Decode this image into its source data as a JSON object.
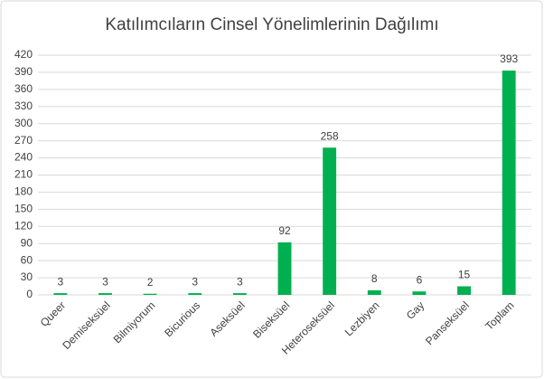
{
  "chart_data": {
    "type": "bar",
    "title": "Katılımcıların Cinsel Yönelimlerinin Dağılımı",
    "categories": [
      "Queer",
      "Demiseksüel",
      "Bilmiyorum",
      "Bicurious",
      "Aseksüel",
      "Biseksüel",
      "Heteroseksüel",
      "Lezbiyen",
      "Gay",
      "Panseksüel",
      "Toplam"
    ],
    "values": [
      3,
      3,
      2,
      3,
      3,
      92,
      258,
      8,
      6,
      15,
      393
    ],
    "color": "#00b050",
    "ylim": [
      0,
      420
    ],
    "yticks": [
      0,
      30,
      60,
      90,
      120,
      150,
      180,
      210,
      240,
      270,
      300,
      330,
      360,
      390,
      420
    ],
    "grid": true
  }
}
